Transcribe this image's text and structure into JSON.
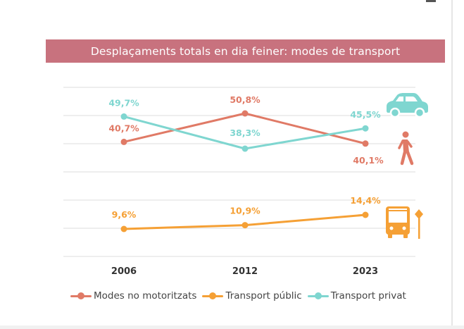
{
  "chart_data": {
    "type": "line",
    "title": "Desplaçaments totals en dia feiner: modes de transport",
    "categories": [
      "2006",
      "2012",
      "2023"
    ],
    "series": [
      {
        "name": "Modes no motoritzats",
        "values": [
          40.7,
          50.8,
          40.1
        ],
        "labels": [
          "40,7%",
          "50,8%",
          "40,1%"
        ],
        "color": "#e07a66"
      },
      {
        "name": "Transport públic",
        "values": [
          9.6,
          10.9,
          14.4
        ],
        "labels": [
          "9,6%",
          "10,9%",
          "14,4%"
        ],
        "color": "#f5a035"
      },
      {
        "name": "Transport privat",
        "values": [
          49.7,
          38.3,
          45.5
        ],
        "labels": [
          "49,7%",
          "38,3%",
          "45,5%"
        ],
        "color": "#7fd6d0"
      }
    ],
    "xlabel": "",
    "ylabel": "",
    "grid": true,
    "legend_position": "bottom",
    "icons": {
      "car": "car-icon",
      "pedestrian": "pedestrian-icon",
      "bus": "bus-stop-icon"
    }
  }
}
